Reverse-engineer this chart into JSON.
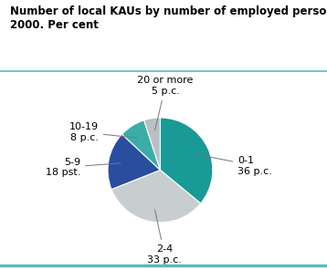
{
  "title_line1": "Number of local KAUs by number of employed persons.",
  "title_line2": "2000. Per cent",
  "slices": [
    {
      "label_line1": "0-1",
      "label_line2": "36 p.c.",
      "value": 36,
      "color": "#1a9a96"
    },
    {
      "label_line1": "2-4",
      "label_line2": "33 p.c.",
      "value": 33,
      "color": "#c8cdd0"
    },
    {
      "label_line1": "5-9",
      "label_line2": "18 pst.",
      "value": 18,
      "color": "#2a4da0"
    },
    {
      "label_line1": "10-19",
      "label_line2": "8 p.c.",
      "value": 8,
      "color": "#3aada8"
    },
    {
      "label_line1": "20 or more",
      "label_line2": "5 p.c.",
      "value": 5,
      "color": "#b8bfc5"
    }
  ],
  "title_fontsize": 8.5,
  "label_fontsize": 8,
  "background_color": "#ffffff",
  "title_color": "#000000",
  "teal_line_color": "#5bbcbb",
  "startangle": 90
}
